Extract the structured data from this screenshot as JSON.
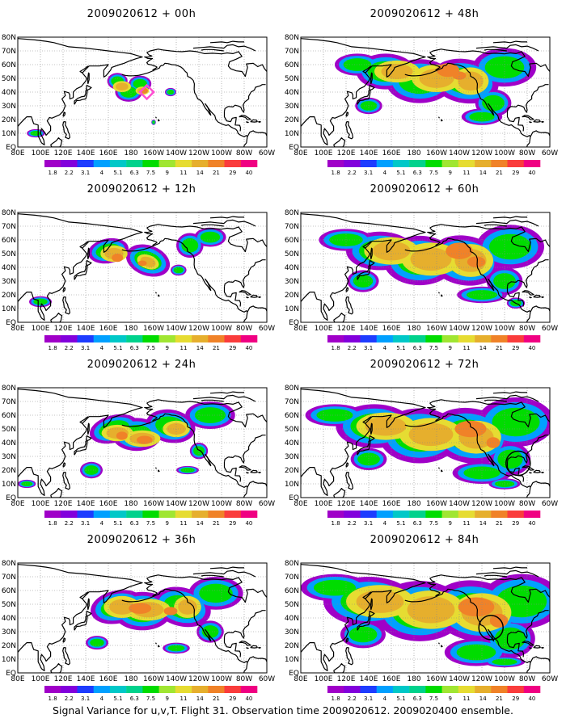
{
  "caption": "Signal Variance for u,v,T. Flight 31. Observation time 2009020612. 2009020400 ensemble.",
  "lat_labels": [
    "80N",
    "70N",
    "60N",
    "50N",
    "40N",
    "30N",
    "20N",
    "10N",
    "EQ"
  ],
  "lon_labels": [
    "80E",
    "100E",
    "120E",
    "140E",
    "160E",
    "180",
    "160W",
    "140W",
    "120W",
    "100W",
    "80W",
    "60W"
  ],
  "colorbar": {
    "labels": [
      "1.8",
      "2.2",
      "3.1",
      "4",
      "5.1",
      "6.3",
      "7.5",
      "9",
      "11",
      "14",
      "21",
      "29",
      "40"
    ],
    "colors": [
      "#a000c8",
      "#8200dc",
      "#1e3cff",
      "#00a0ff",
      "#00c8c8",
      "#00d28c",
      "#00dc00",
      "#a0e632",
      "#e6dc32",
      "#e6af2d",
      "#f08228",
      "#fa3c3c",
      "#f00082"
    ]
  },
  "panels": [
    {
      "id": "p00",
      "title": "2009020612 + 00h",
      "level": 0,
      "markers": [
        {
          "type": "diamond",
          "color": "#ff4dd2",
          "lon": -166,
          "lat": 40
        }
      ]
    },
    {
      "id": "p12",
      "title": "2009020612 + 12h",
      "level": 1,
      "markers": []
    },
    {
      "id": "p24",
      "title": "2009020612 + 24h",
      "level": 2,
      "markers": []
    },
    {
      "id": "p36",
      "title": "2009020612 + 36h",
      "level": 3,
      "markers": []
    },
    {
      "id": "p48",
      "title": "2009020612 + 48h",
      "level": 4,
      "markers": []
    },
    {
      "id": "p60",
      "title": "2009020612 + 60h",
      "level": 5,
      "markers": []
    },
    {
      "id": "p72",
      "title": "2009020612 + 72h",
      "level": 6,
      "markers": [
        {
          "type": "circle",
          "color": "#000000",
          "lon": -88,
          "lat": 25
        }
      ]
    },
    {
      "id": "p84",
      "title": "2009020612 + 84h",
      "level": 7,
      "markers": [
        {
          "type": "circle",
          "color": "#000000",
          "lon": -112,
          "lat": 33
        }
      ]
    }
  ]
}
